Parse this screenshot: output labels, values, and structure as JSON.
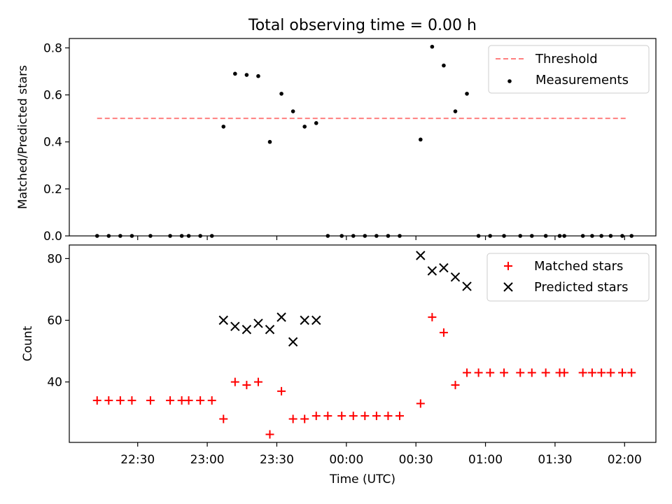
{
  "chart_data": {
    "title": "Total observing time = 0.00 h",
    "xlabel": "Time (UTC)",
    "x_tick_labels": [
      "22:30",
      "23:00",
      "23:30",
      "00:00",
      "00:30",
      "01:00",
      "01:30",
      "02:00"
    ],
    "x_tick_minutes": [
      0,
      30,
      60,
      90,
      120,
      150,
      180,
      210
    ],
    "x_range_minutes": [
      -29.5,
      223.5
    ],
    "x_note_minutes": "minutes after 22:30 UTC",
    "panels": [
      {
        "type": "scatter",
        "ylabel": "Matched/Predicted stars",
        "ylim": [
          0,
          0.84
        ],
        "yticks": [
          0.0,
          0.2,
          0.4,
          0.6,
          0.8
        ],
        "ytick_labels": [
          "0.0",
          "0.2",
          "0.4",
          "0.6",
          "0.8"
        ],
        "legend_position": "top-right",
        "threshold": {
          "name": "Threshold",
          "value": 0.5,
          "x_range": [
            -17.5,
            210.5
          ],
          "color": "#ff7f7f"
        },
        "series": [
          {
            "name": "Measurements",
            "color": "#000000",
            "marker": "dot",
            "x": [
              -17.5,
              -12.5,
              -7.5,
              -2.5,
              5.5,
              14,
              19,
              22,
              27,
              32,
              37,
              42,
              47,
              52,
              57,
              62,
              67,
              72,
              77,
              82,
              88,
              93,
              98,
              103,
              108,
              113,
              122,
              127,
              132,
              137,
              142,
              147,
              152,
              158,
              165,
              170,
              176,
              182,
              184,
              192,
              196,
              200,
              204,
              209,
              213
            ],
            "y": [
              0,
              0,
              0,
              0,
              0,
              0,
              0,
              0,
              0,
              0,
              0.465,
              0.69,
              0.685,
              0.68,
              0.4,
              0.605,
              0.53,
              0.465,
              0.48,
              0,
              0,
              0,
              0,
              0,
              0,
              0,
              0.41,
              0.805,
              0.725,
              0.53,
              0.605,
              0,
              0,
              0,
              0,
              0,
              0,
              0,
              0,
              0,
              0,
              0,
              0,
              0,
              0
            ]
          }
        ]
      },
      {
        "type": "scatter",
        "ylabel": "Count",
        "ylim": [
          20.4,
          84.4
        ],
        "yticks": [
          40,
          60,
          80
        ],
        "ytick_labels": [
          "40",
          "60",
          "80"
        ],
        "legend_position": "top-right",
        "series": [
          {
            "name": "Matched stars",
            "color": "#ff0000",
            "marker": "plus",
            "x": [
              -17.5,
              -12.5,
              -7.5,
              -2.5,
              5.5,
              14,
              19,
              22,
              27,
              32,
              37,
              42,
              47,
              52,
              57,
              62,
              67,
              72,
              77,
              82,
              88,
              93,
              98,
              103,
              108,
              113,
              122,
              127,
              132,
              137,
              142,
              147,
              152,
              158,
              165,
              170,
              176,
              182,
              184,
              192,
              196,
              200,
              204,
              209,
              213
            ],
            "y": [
              34,
              34,
              34,
              34,
              34,
              34,
              34,
              34,
              34,
              34,
              28,
              40,
              39,
              40,
              23,
              37,
              28,
              28,
              29,
              29,
              29,
              29,
              29,
              29,
              29,
              29,
              33,
              61,
              56,
              39,
              43,
              43,
              43,
              43,
              43,
              43,
              43,
              43,
              43,
              43,
              43,
              43,
              43,
              43,
              43
            ]
          },
          {
            "name": "Predicted stars",
            "color": "#000000",
            "marker": "x",
            "x": [
              37,
              42,
              47,
              52,
              57,
              62,
              67,
              72,
              77,
              122,
              127,
              132,
              137,
              142
            ],
            "y": [
              60,
              58,
              57,
              59,
              57,
              61,
              53,
              60,
              60,
              81,
              76,
              77,
              74,
              71
            ]
          }
        ]
      }
    ]
  }
}
